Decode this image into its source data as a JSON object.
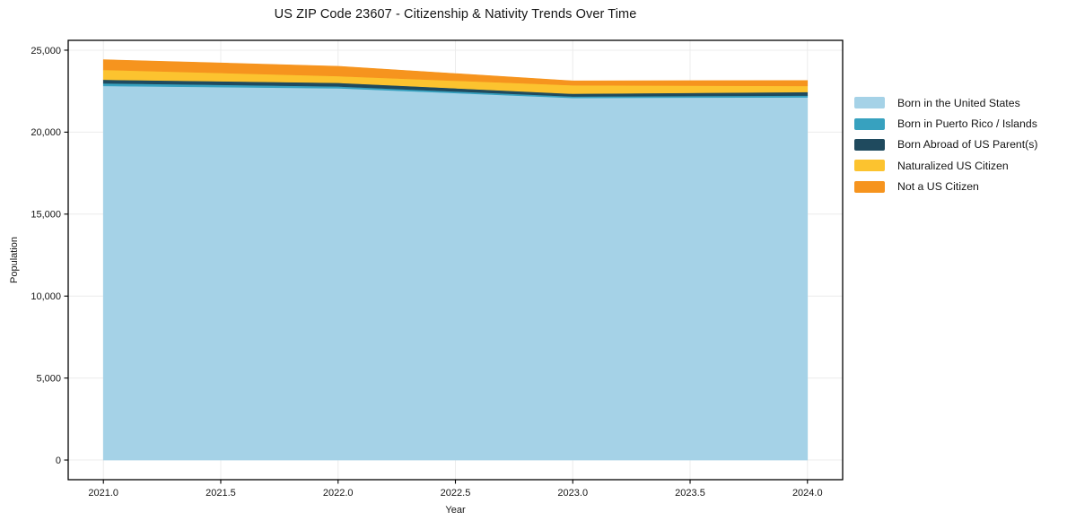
{
  "chart_data": {
    "type": "area",
    "stacked": true,
    "title": "US ZIP Code 23607 - Citizenship & Nativity Trends Over Time",
    "xlabel": "Year",
    "ylabel": "Population",
    "x": [
      2021,
      2022,
      2023,
      2024
    ],
    "series": [
      {
        "name": "Born in the United States",
        "color": "#a5d2e7",
        "values": [
          22820,
          22680,
          22090,
          22125
        ]
      },
      {
        "name": "Born in Puerto Rico / Islands",
        "color": "#37a1bf",
        "values": [
          160,
          110,
          90,
          110
        ]
      },
      {
        "name": "Born Abroad of US Parent(s)",
        "color": "#1f4a5e",
        "values": [
          220,
          220,
          165,
          215
        ]
      },
      {
        "name": "Naturalized US Citizen",
        "color": "#fcc32f",
        "values": [
          600,
          410,
          515,
          370
        ]
      },
      {
        "name": "Not a US Citizen",
        "color": "#f6941e",
        "values": [
          620,
          600,
          270,
          330
        ]
      }
    ],
    "xlim": [
      2020.85,
      2024.15
    ],
    "ylim": [
      -1200,
      25600
    ],
    "xticks": {
      "values": [
        2021.0,
        2021.5,
        2022.0,
        2022.5,
        2023.0,
        2023.5,
        2024.0
      ],
      "labels": [
        "2021.0",
        "2021.5",
        "2022.0",
        "2022.5",
        "2023.0",
        "2023.5",
        "2024.0"
      ]
    },
    "yticks": {
      "values": [
        0,
        5000,
        10000,
        15000,
        20000,
        25000
      ],
      "labels": [
        "0",
        "5,000",
        "10,000",
        "15,000",
        "20,000",
        "25,000"
      ]
    },
    "grid": true,
    "legend_position": "right-outside"
  },
  "colors": {
    "grid": "#ececec",
    "spine": "#000000",
    "tick_text": "#151515",
    "background": "#ffffff"
  }
}
